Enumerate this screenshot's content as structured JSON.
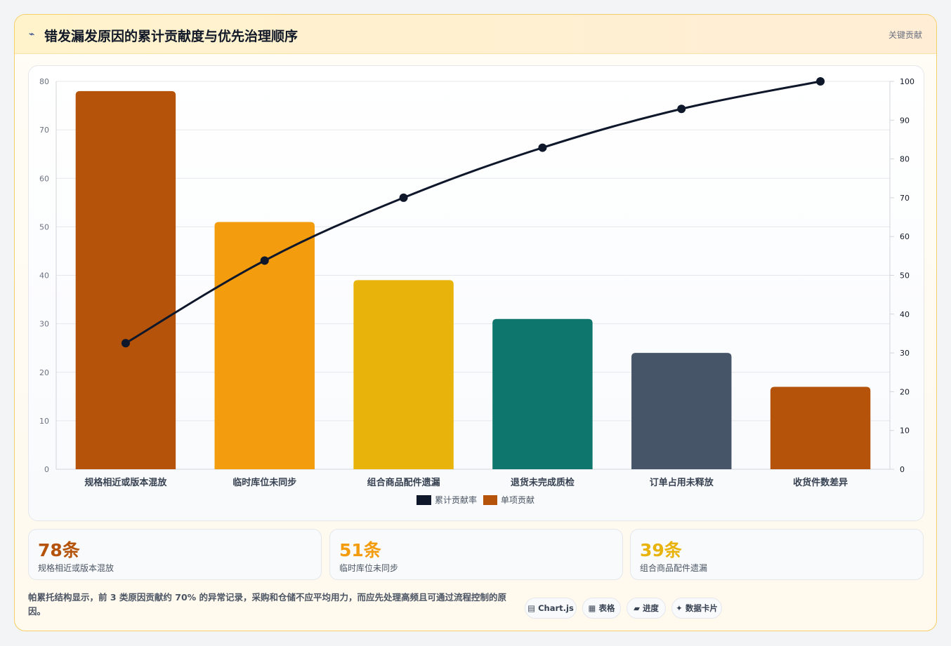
{
  "header": {
    "icon": "⌁",
    "title": "错发漏发原因的累计贡献度与优先治理顺序",
    "key_label": "关键贡献"
  },
  "chart_data": {
    "type": "bar",
    "categories": [
      "规格相近或版本混放",
      "临时库位未同步",
      "组合商品配件遗漏",
      "退货未完成质检",
      "订单占用未释放",
      "收货件数差异"
    ],
    "values": [
      78,
      51,
      39,
      31,
      24,
      17
    ],
    "cumulative": [
      32.5,
      53.8,
      70.0,
      82.9,
      92.9,
      100.0
    ],
    "bar_colors": [
      "#b45309",
      "#f39c0e",
      "#e8b30a",
      "#0f766e",
      "#475569",
      "#b45309"
    ],
    "line_color": "#0f172a",
    "ylim": [
      0,
      80
    ],
    "y2lim": [
      0,
      100
    ],
    "yticks": [
      0,
      10,
      20,
      30,
      40,
      50,
      60,
      70,
      80
    ],
    "y2ticks": [
      0,
      10,
      20,
      30,
      40,
      50,
      60,
      70,
      80,
      90,
      100
    ],
    "legend": [
      {
        "name": "累计贡献率",
        "color": "#0f172a"
      },
      {
        "name": "单项贡献",
        "color": "#b45309"
      }
    ],
    "legend_position": "bottom",
    "grid": true
  },
  "stats": [
    {
      "value": "78条",
      "label": "规格相近或版本混放",
      "color": "#b45309"
    },
    {
      "value": "51条",
      "label": "临时库位未同步",
      "color": "#f39c0e"
    },
    {
      "value": "39条",
      "label": "组合商品配件遗漏",
      "color": "#e8b30a"
    }
  ],
  "summary": "帕累托结构显示，前 3 类原因贡献约 70% 的异常记录，采购和仓储不应平均用力，而应先处理高频且可通过流程控制的原因。",
  "tags": [
    {
      "icon": "▤",
      "label": "Chart.js"
    },
    {
      "icon": "▦",
      "label": "表格"
    },
    {
      "icon": "▰",
      "label": "进度"
    },
    {
      "icon": "✦",
      "label": "数据卡片"
    }
  ]
}
